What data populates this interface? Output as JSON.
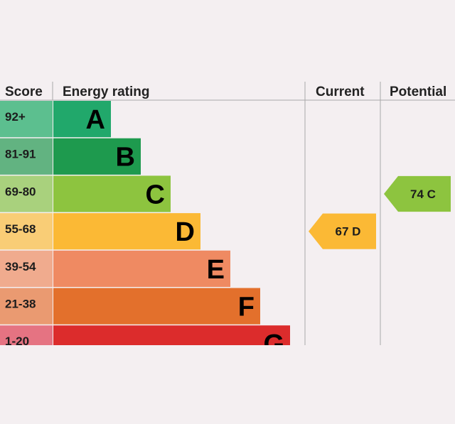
{
  "chart_data": {
    "type": "bar",
    "headers": {
      "score": "Score",
      "rating": "Energy rating",
      "current": "Current",
      "potential": "Potential"
    },
    "bands": [
      {
        "score": "92+",
        "letter": "A",
        "color": "#21a86b",
        "score_bg": "#5cbf8f"
      },
      {
        "score": "81-91",
        "letter": "B",
        "color": "#1e9a4e",
        "score_bg": "#62b381"
      },
      {
        "score": "69-80",
        "letter": "C",
        "color": "#8dc43f",
        "score_bg": "#a9d17d"
      },
      {
        "score": "55-68",
        "letter": "D",
        "color": "#fbb935",
        "score_bg": "#f9cd76"
      },
      {
        "score": "39-54",
        "letter": "E",
        "color": "#ef8a62",
        "score_bg": "#f0ab8e"
      },
      {
        "score": "21-38",
        "letter": "F",
        "color": "#e3702c",
        "score_bg": "#ea9a71"
      },
      {
        "score": "1-20",
        "letter": "G",
        "color": "#dc2c2c",
        "score_bg": "#e57382"
      }
    ],
    "current": {
      "value": 67,
      "letter": "D",
      "label": "67 D",
      "color": "#fbb935"
    },
    "potential": {
      "value": 74,
      "letter": "C",
      "label": "74 C",
      "color": "#8dc43f"
    }
  }
}
